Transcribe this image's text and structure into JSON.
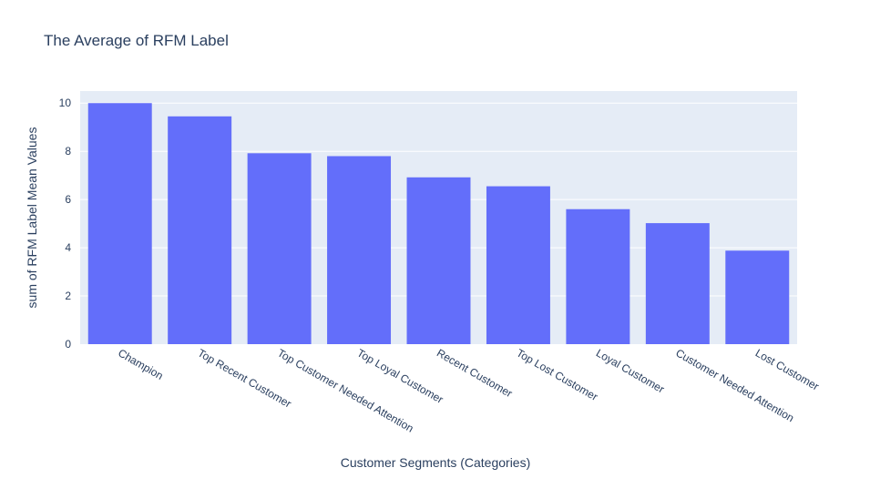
{
  "chart_data": {
    "type": "bar",
    "title": "The Average of RFM Label",
    "xlabel": "Customer Segments (Categories)",
    "ylabel": "sum of RFM Label Mean Values",
    "categories": [
      "Champion",
      "Top Recent Customer",
      "Top Customer Needed Attention",
      "Top Loyal Customer",
      "Recent Customer",
      "Top Lost Customer",
      "Loyal Customer",
      "Customer Needed Attention",
      "Lost Customer"
    ],
    "values": [
      10.0,
      9.45,
      7.92,
      7.8,
      6.92,
      6.55,
      5.6,
      5.02,
      3.88
    ],
    "ylim": [
      0,
      10.5
    ],
    "yticks": [
      0,
      2,
      4,
      6,
      8,
      10
    ],
    "grid": true,
    "colors": {
      "bar": "#636efa",
      "plot_bg": "#e5ecf6",
      "grid": "#ffffff",
      "text": "#2a3f5f"
    }
  }
}
